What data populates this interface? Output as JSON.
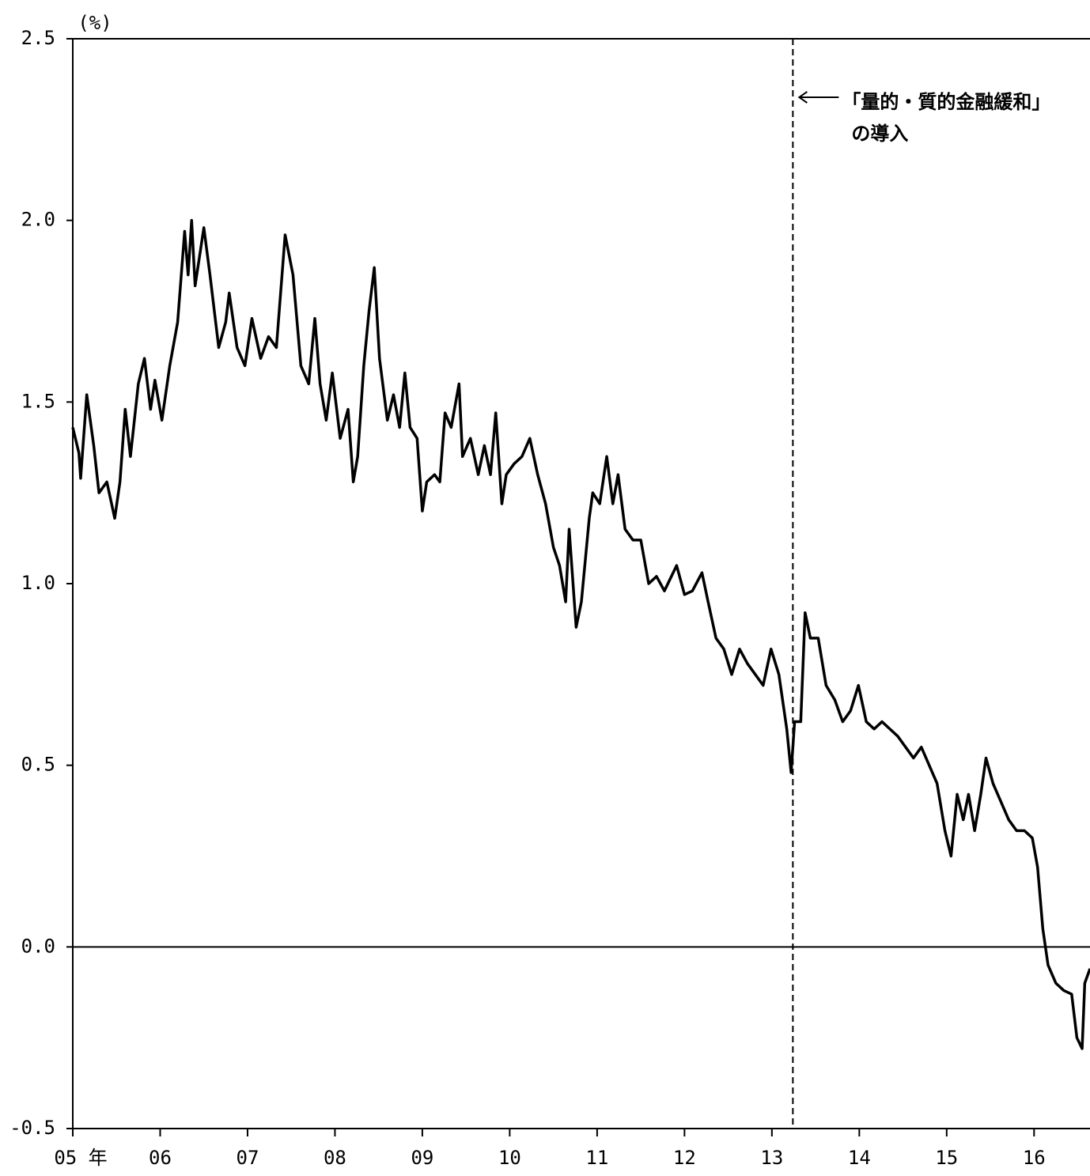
{
  "chart_data": {
    "type": "line",
    "y_unit_label": "(%)",
    "x": [
      2005.0,
      2005.07,
      2005.09,
      2005.16,
      2005.24,
      2005.3,
      2005.39,
      2005.48,
      2005.54,
      2005.6,
      2005.66,
      2005.75,
      2005.82,
      2005.89,
      2005.94,
      2006.02,
      2006.11,
      2006.2,
      2006.28,
      2006.32,
      2006.36,
      2006.4,
      2006.5,
      2006.57,
      2006.67,
      2006.75,
      2006.79,
      2006.88,
      2006.97,
      2007.05,
      2007.15,
      2007.24,
      2007.33,
      2007.43,
      2007.52,
      2007.61,
      2007.7,
      2007.77,
      2007.83,
      2007.9,
      2007.97,
      2008.06,
      2008.15,
      2008.21,
      2008.26,
      2008.33,
      2008.39,
      2008.45,
      2008.51,
      2008.6,
      2008.67,
      2008.74,
      2008.8,
      2008.86,
      2008.94,
      2009.0,
      2009.05,
      2009.14,
      2009.2,
      2009.26,
      2009.33,
      2009.42,
      2009.46,
      2009.55,
      2009.64,
      2009.71,
      2009.78,
      2009.84,
      2009.91,
      2009.96,
      2010.05,
      2010.14,
      2010.23,
      2010.32,
      2010.41,
      2010.5,
      2010.57,
      2010.64,
      2010.68,
      2010.76,
      2010.82,
      2010.91,
      2010.95,
      2011.03,
      2011.11,
      2011.18,
      2011.24,
      2011.32,
      2011.41,
      2011.5,
      2011.59,
      2011.68,
      2011.77,
      2011.91,
      2012.0,
      2012.09,
      2012.2,
      2012.27,
      2012.36,
      2012.45,
      2012.54,
      2012.63,
      2012.72,
      2012.81,
      2012.9,
      2012.99,
      2013.08,
      2013.17,
      2013.22,
      2013.26,
      2013.33,
      2013.38,
      2013.44,
      2013.53,
      2013.62,
      2013.72,
      2013.81,
      2013.9,
      2013.99,
      2014.08,
      2014.17,
      2014.26,
      2014.35,
      2014.44,
      2014.53,
      2014.62,
      2014.71,
      2014.8,
      2014.89,
      2014.98,
      2015.05,
      2015.12,
      2015.19,
      2015.25,
      2015.32,
      2015.39,
      2015.45,
      2015.53,
      2015.62,
      2015.71,
      2015.8,
      2015.89,
      2015.98,
      2016.04,
      2016.1,
      2016.16,
      2016.25,
      2016.34,
      2016.43,
      2016.49,
      2016.55,
      2016.58,
      2016.64
    ],
    "values": [
      1.43,
      1.36,
      1.29,
      1.52,
      1.38,
      1.25,
      1.28,
      1.18,
      1.28,
      1.48,
      1.35,
      1.55,
      1.62,
      1.48,
      1.56,
      1.45,
      1.6,
      1.72,
      1.97,
      1.85,
      2.0,
      1.82,
      1.98,
      1.85,
      1.65,
      1.72,
      1.8,
      1.65,
      1.6,
      1.73,
      1.62,
      1.68,
      1.65,
      1.96,
      1.85,
      1.6,
      1.55,
      1.73,
      1.55,
      1.45,
      1.58,
      1.4,
      1.48,
      1.28,
      1.35,
      1.6,
      1.75,
      1.87,
      1.62,
      1.45,
      1.52,
      1.43,
      1.58,
      1.43,
      1.4,
      1.2,
      1.28,
      1.3,
      1.28,
      1.47,
      1.43,
      1.55,
      1.35,
      1.4,
      1.3,
      1.38,
      1.3,
      1.47,
      1.22,
      1.3,
      1.33,
      1.35,
      1.4,
      1.3,
      1.22,
      1.1,
      1.05,
      0.95,
      1.15,
      0.88,
      0.95,
      1.18,
      1.25,
      1.22,
      1.35,
      1.22,
      1.3,
      1.15,
      1.12,
      1.12,
      1.0,
      1.02,
      0.98,
      1.05,
      0.97,
      0.98,
      1.03,
      0.95,
      0.85,
      0.82,
      0.75,
      0.82,
      0.78,
      0.75,
      0.72,
      0.82,
      0.75,
      0.6,
      0.48,
      0.62,
      0.62,
      0.92,
      0.85,
      0.85,
      0.72,
      0.68,
      0.62,
      0.65,
      0.72,
      0.62,
      0.6,
      0.62,
      0.6,
      0.58,
      0.55,
      0.52,
      0.55,
      0.5,
      0.45,
      0.32,
      0.25,
      0.42,
      0.35,
      0.42,
      0.32,
      0.42,
      0.52,
      0.45,
      0.4,
      0.35,
      0.32,
      0.32,
      0.3,
      0.22,
      0.05,
      -0.05,
      -0.1,
      -0.12,
      -0.13,
      -0.25,
      -0.28,
      -0.1,
      -0.06
    ],
    "color": "#000000",
    "xlim": [
      2005,
      2016.64
    ],
    "xticks": [
      {
        "value": 2005,
        "label": "05 年"
      },
      {
        "value": 2006,
        "label": "06"
      },
      {
        "value": 2007,
        "label": "07"
      },
      {
        "value": 2008,
        "label": "08"
      },
      {
        "value": 2009,
        "label": "09"
      },
      {
        "value": 2010,
        "label": "10"
      },
      {
        "value": 2011,
        "label": "11"
      },
      {
        "value": 2012,
        "label": "12"
      },
      {
        "value": 2013,
        "label": "13"
      },
      {
        "value": 2014,
        "label": "14"
      },
      {
        "value": 2015,
        "label": "15"
      },
      {
        "value": 2016,
        "label": "16"
      }
    ],
    "ylim": [
      -0.5,
      2.5
    ],
    "yticks": [
      -0.5,
      {
        "value": 0,
        "label": "0.0"
      },
      0.5,
      {
        "value": 1,
        "label": "1.0"
      },
      1.5,
      {
        "value": 2,
        "label": "2.0"
      },
      2.5
    ],
    "grid": false,
    "zero_line": true,
    "annotation": {
      "x": 2013.24,
      "lines": [
        "「量的・質的金融緩和」",
        "の導入"
      ]
    }
  }
}
